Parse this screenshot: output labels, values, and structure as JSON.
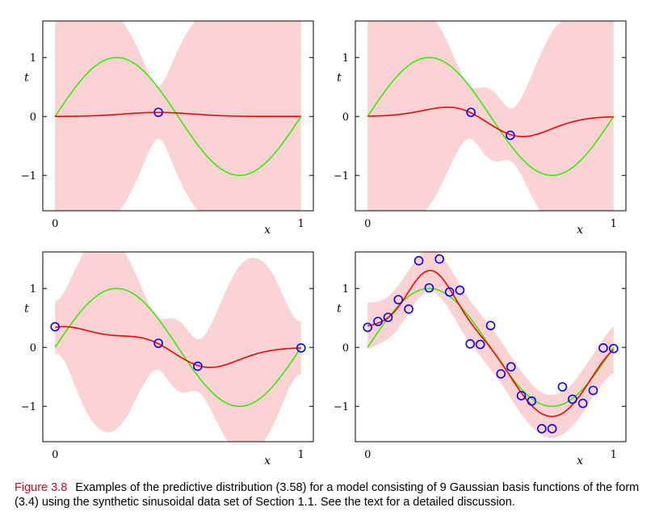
{
  "chart_data": [
    {
      "type": "line",
      "xlabel": "x",
      "ylabel": "t",
      "xticks": [
        "0",
        "1"
      ],
      "yticks": [
        "−1",
        "0",
        "1"
      ],
      "xlim": [
        -0.05,
        1.05
      ],
      "ylim": [
        -1.6,
        1.62
      ],
      "points": [
        [
          0.42,
          0.07
        ]
      ]
    },
    {
      "type": "line",
      "xlabel": "x",
      "ylabel": "t",
      "xticks": [
        "0",
        "1"
      ],
      "yticks": [
        "−1",
        "0",
        "1"
      ],
      "xlim": [
        -0.05,
        1.05
      ],
      "ylim": [
        -1.6,
        1.62
      ],
      "points": [
        [
          0.42,
          0.07
        ],
        [
          0.58,
          -0.32
        ]
      ]
    },
    {
      "type": "line",
      "xlabel": "x",
      "ylabel": "t",
      "xticks": [
        "0",
        "1"
      ],
      "yticks": [
        "−1",
        "0",
        "1"
      ],
      "xlim": [
        -0.05,
        1.05
      ],
      "ylim": [
        -1.6,
        1.62
      ],
      "points": [
        [
          0.0,
          0.35
        ],
        [
          0.42,
          0.07
        ],
        [
          0.58,
          -0.32
        ],
        [
          1.0,
          -0.01
        ]
      ]
    },
    {
      "type": "line",
      "xlabel": "x",
      "ylabel": "t",
      "xticks": [
        "0",
        "1"
      ],
      "yticks": [
        "−1",
        "0",
        "1"
      ],
      "xlim": [
        -0.05,
        1.05
      ],
      "ylim": [
        -1.6,
        1.62
      ],
      "points": [
        [
          0.0,
          0.34
        ],
        [
          0.042,
          0.44
        ],
        [
          0.083,
          0.51
        ],
        [
          0.125,
          0.81
        ],
        [
          0.167,
          0.65
        ],
        [
          0.208,
          1.47
        ],
        [
          0.25,
          1.01
        ],
        [
          0.292,
          1.5
        ],
        [
          0.333,
          0.94
        ],
        [
          0.375,
          0.97
        ],
        [
          0.417,
          0.06
        ],
        [
          0.458,
          0.05
        ],
        [
          0.5,
          0.37
        ],
        [
          0.542,
          -0.45
        ],
        [
          0.583,
          -0.33
        ],
        [
          0.625,
          -0.82
        ],
        [
          0.667,
          -0.91
        ],
        [
          0.708,
          -1.38
        ],
        [
          0.75,
          -1.38
        ],
        [
          0.792,
          -0.67
        ],
        [
          0.833,
          -0.88
        ],
        [
          0.875,
          -0.95
        ],
        [
          0.917,
          -0.73
        ],
        [
          0.958,
          -0.01
        ],
        [
          1.0,
          -0.02
        ]
      ]
    }
  ],
  "colors": {
    "band": "#fbd3d5",
    "mean": "#ff0000",
    "truth": "#33ee00",
    "points": "#0000ff",
    "figure_label": "#e2001a"
  },
  "caption": {
    "label": "Figure 3.8",
    "text": "Examples of the predictive distribution (3.58) for a model consisting of 9 Gaussian basis functions of the form (3.4) using the synthetic sinusoidal data set of Section 1.1. See the text for a detailed discussion."
  }
}
